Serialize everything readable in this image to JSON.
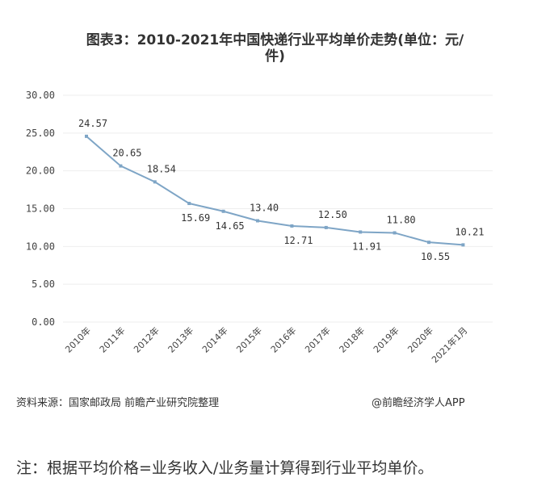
{
  "chart_data": {
    "type": "line",
    "title_line1": "图表3：2010-2021年中国快递行业平均单价走势(单位：元/",
    "title_line2": "件)",
    "categories": [
      "2010年",
      "2011年",
      "2012年",
      "2013年",
      "2014年",
      "2015年",
      "2016年",
      "2017年",
      "2018年",
      "2019年",
      "2020年",
      "2021年1月"
    ],
    "values": [
      24.57,
      20.65,
      18.54,
      15.69,
      14.65,
      13.4,
      12.71,
      12.5,
      11.91,
      11.8,
      10.55,
      10.21
    ],
    "labels": [
      "24.57",
      "20.65",
      "18.54",
      "15.69",
      "14.65",
      "13.40",
      "12.71",
      "12.50",
      "11.91",
      "11.80",
      "10.55",
      "10.21"
    ],
    "label_pos": [
      "above",
      "above",
      "above",
      "below",
      "below",
      "above",
      "below",
      "above",
      "below",
      "above",
      "below",
      "above"
    ],
    "yticks": [
      "0.00",
      "5.00",
      "10.00",
      "15.00",
      "20.00",
      "25.00",
      "30.00"
    ],
    "ylim": [
      0,
      30
    ],
    "grid": true,
    "line_color": "#7ea5c6"
  },
  "footer": {
    "source": "资料来源：国家邮政局 前瞻产业研究院整理",
    "credit": "@前瞻经济学人APP"
  },
  "note": "注：根据平均价格=业务收入/业务量计算得到行业平均单价。"
}
